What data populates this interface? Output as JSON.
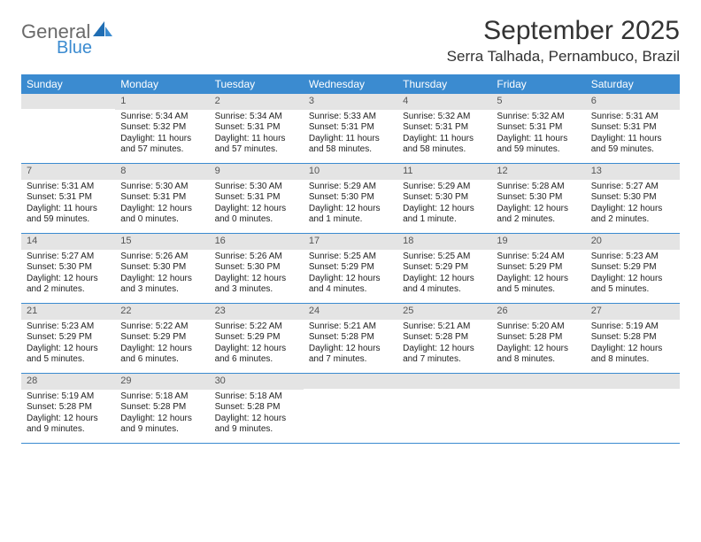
{
  "logo": {
    "word1": "General",
    "word2": "Blue"
  },
  "title": "September 2025",
  "location": "Serra Talhada, Pernambuco, Brazil",
  "colors": {
    "header_bg": "#3b8bd0",
    "header_text": "#ffffff",
    "daynum_bg": "#e4e4e4",
    "rule": "#3b8bd0",
    "logo_gray": "#6a6a6a",
    "logo_blue": "#3b8bd0"
  },
  "weekdays": [
    "Sunday",
    "Monday",
    "Tuesday",
    "Wednesday",
    "Thursday",
    "Friday",
    "Saturday"
  ],
  "weeks": [
    [
      {
        "n": "",
        "sr": "",
        "ss": "",
        "dl": ""
      },
      {
        "n": "1",
        "sr": "Sunrise: 5:34 AM",
        "ss": "Sunset: 5:32 PM",
        "dl": "Daylight: 11 hours and 57 minutes."
      },
      {
        "n": "2",
        "sr": "Sunrise: 5:34 AM",
        "ss": "Sunset: 5:31 PM",
        "dl": "Daylight: 11 hours and 57 minutes."
      },
      {
        "n": "3",
        "sr": "Sunrise: 5:33 AM",
        "ss": "Sunset: 5:31 PM",
        "dl": "Daylight: 11 hours and 58 minutes."
      },
      {
        "n": "4",
        "sr": "Sunrise: 5:32 AM",
        "ss": "Sunset: 5:31 PM",
        "dl": "Daylight: 11 hours and 58 minutes."
      },
      {
        "n": "5",
        "sr": "Sunrise: 5:32 AM",
        "ss": "Sunset: 5:31 PM",
        "dl": "Daylight: 11 hours and 59 minutes."
      },
      {
        "n": "6",
        "sr": "Sunrise: 5:31 AM",
        "ss": "Sunset: 5:31 PM",
        "dl": "Daylight: 11 hours and 59 minutes."
      }
    ],
    [
      {
        "n": "7",
        "sr": "Sunrise: 5:31 AM",
        "ss": "Sunset: 5:31 PM",
        "dl": "Daylight: 11 hours and 59 minutes."
      },
      {
        "n": "8",
        "sr": "Sunrise: 5:30 AM",
        "ss": "Sunset: 5:31 PM",
        "dl": "Daylight: 12 hours and 0 minutes."
      },
      {
        "n": "9",
        "sr": "Sunrise: 5:30 AM",
        "ss": "Sunset: 5:31 PM",
        "dl": "Daylight: 12 hours and 0 minutes."
      },
      {
        "n": "10",
        "sr": "Sunrise: 5:29 AM",
        "ss": "Sunset: 5:30 PM",
        "dl": "Daylight: 12 hours and 1 minute."
      },
      {
        "n": "11",
        "sr": "Sunrise: 5:29 AM",
        "ss": "Sunset: 5:30 PM",
        "dl": "Daylight: 12 hours and 1 minute."
      },
      {
        "n": "12",
        "sr": "Sunrise: 5:28 AM",
        "ss": "Sunset: 5:30 PM",
        "dl": "Daylight: 12 hours and 2 minutes."
      },
      {
        "n": "13",
        "sr": "Sunrise: 5:27 AM",
        "ss": "Sunset: 5:30 PM",
        "dl": "Daylight: 12 hours and 2 minutes."
      }
    ],
    [
      {
        "n": "14",
        "sr": "Sunrise: 5:27 AM",
        "ss": "Sunset: 5:30 PM",
        "dl": "Daylight: 12 hours and 2 minutes."
      },
      {
        "n": "15",
        "sr": "Sunrise: 5:26 AM",
        "ss": "Sunset: 5:30 PM",
        "dl": "Daylight: 12 hours and 3 minutes."
      },
      {
        "n": "16",
        "sr": "Sunrise: 5:26 AM",
        "ss": "Sunset: 5:30 PM",
        "dl": "Daylight: 12 hours and 3 minutes."
      },
      {
        "n": "17",
        "sr": "Sunrise: 5:25 AM",
        "ss": "Sunset: 5:29 PM",
        "dl": "Daylight: 12 hours and 4 minutes."
      },
      {
        "n": "18",
        "sr": "Sunrise: 5:25 AM",
        "ss": "Sunset: 5:29 PM",
        "dl": "Daylight: 12 hours and 4 minutes."
      },
      {
        "n": "19",
        "sr": "Sunrise: 5:24 AM",
        "ss": "Sunset: 5:29 PM",
        "dl": "Daylight: 12 hours and 5 minutes."
      },
      {
        "n": "20",
        "sr": "Sunrise: 5:23 AM",
        "ss": "Sunset: 5:29 PM",
        "dl": "Daylight: 12 hours and 5 minutes."
      }
    ],
    [
      {
        "n": "21",
        "sr": "Sunrise: 5:23 AM",
        "ss": "Sunset: 5:29 PM",
        "dl": "Daylight: 12 hours and 5 minutes."
      },
      {
        "n": "22",
        "sr": "Sunrise: 5:22 AM",
        "ss": "Sunset: 5:29 PM",
        "dl": "Daylight: 12 hours and 6 minutes."
      },
      {
        "n": "23",
        "sr": "Sunrise: 5:22 AM",
        "ss": "Sunset: 5:29 PM",
        "dl": "Daylight: 12 hours and 6 minutes."
      },
      {
        "n": "24",
        "sr": "Sunrise: 5:21 AM",
        "ss": "Sunset: 5:28 PM",
        "dl": "Daylight: 12 hours and 7 minutes."
      },
      {
        "n": "25",
        "sr": "Sunrise: 5:21 AM",
        "ss": "Sunset: 5:28 PM",
        "dl": "Daylight: 12 hours and 7 minutes."
      },
      {
        "n": "26",
        "sr": "Sunrise: 5:20 AM",
        "ss": "Sunset: 5:28 PM",
        "dl": "Daylight: 12 hours and 8 minutes."
      },
      {
        "n": "27",
        "sr": "Sunrise: 5:19 AM",
        "ss": "Sunset: 5:28 PM",
        "dl": "Daylight: 12 hours and 8 minutes."
      }
    ],
    [
      {
        "n": "28",
        "sr": "Sunrise: 5:19 AM",
        "ss": "Sunset: 5:28 PM",
        "dl": "Daylight: 12 hours and 9 minutes."
      },
      {
        "n": "29",
        "sr": "Sunrise: 5:18 AM",
        "ss": "Sunset: 5:28 PM",
        "dl": "Daylight: 12 hours and 9 minutes."
      },
      {
        "n": "30",
        "sr": "Sunrise: 5:18 AM",
        "ss": "Sunset: 5:28 PM",
        "dl": "Daylight: 12 hours and 9 minutes."
      },
      {
        "n": "",
        "sr": "",
        "ss": "",
        "dl": ""
      },
      {
        "n": "",
        "sr": "",
        "ss": "",
        "dl": ""
      },
      {
        "n": "",
        "sr": "",
        "ss": "",
        "dl": ""
      },
      {
        "n": "",
        "sr": "",
        "ss": "",
        "dl": ""
      }
    ]
  ]
}
